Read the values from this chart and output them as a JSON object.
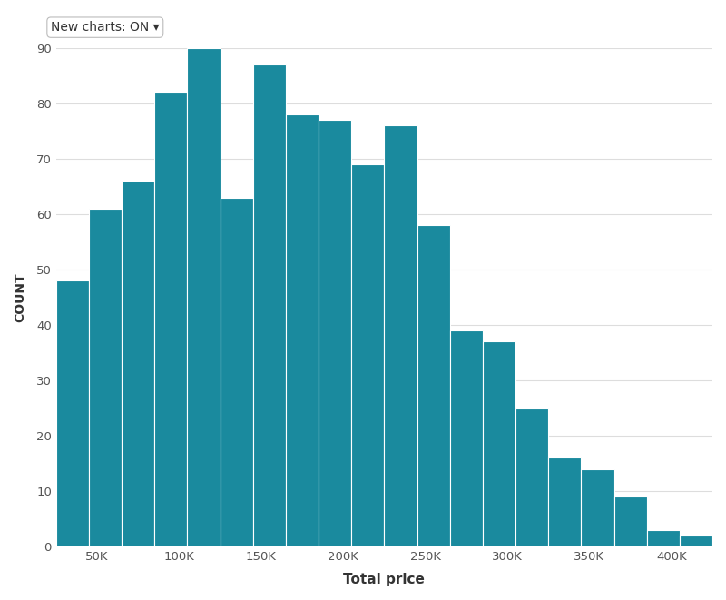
{
  "bar_heights": [
    48,
    61,
    66,
    82,
    90,
    63,
    87,
    78,
    77,
    69,
    76,
    58,
    39,
    37,
    25,
    16,
    14,
    9,
    3,
    2
  ],
  "bar_color": "#1a8a9e",
  "bar_edgecolor": "#ffffff",
  "bar_linewidth": 0.8,
  "xlabel": "Total price",
  "ylabel": "COUNT",
  "ylabel_fontsize": 10,
  "xlabel_fontsize": 11,
  "annotation": "New charts: ON ▾",
  "annotation_fontsize": 10,
  "xlim_left": 0,
  "xlim_right": 400000,
  "ylim_bottom": 0,
  "ylim_top": 90,
  "yticks": [
    0,
    10,
    20,
    30,
    40,
    50,
    60,
    70,
    80,
    90
  ],
  "bin_width": 20000,
  "num_bins": 20,
  "x_start": 0,
  "background_color": "#ffffff",
  "grid_color": "#dddddd",
  "tick_color": "#555555"
}
